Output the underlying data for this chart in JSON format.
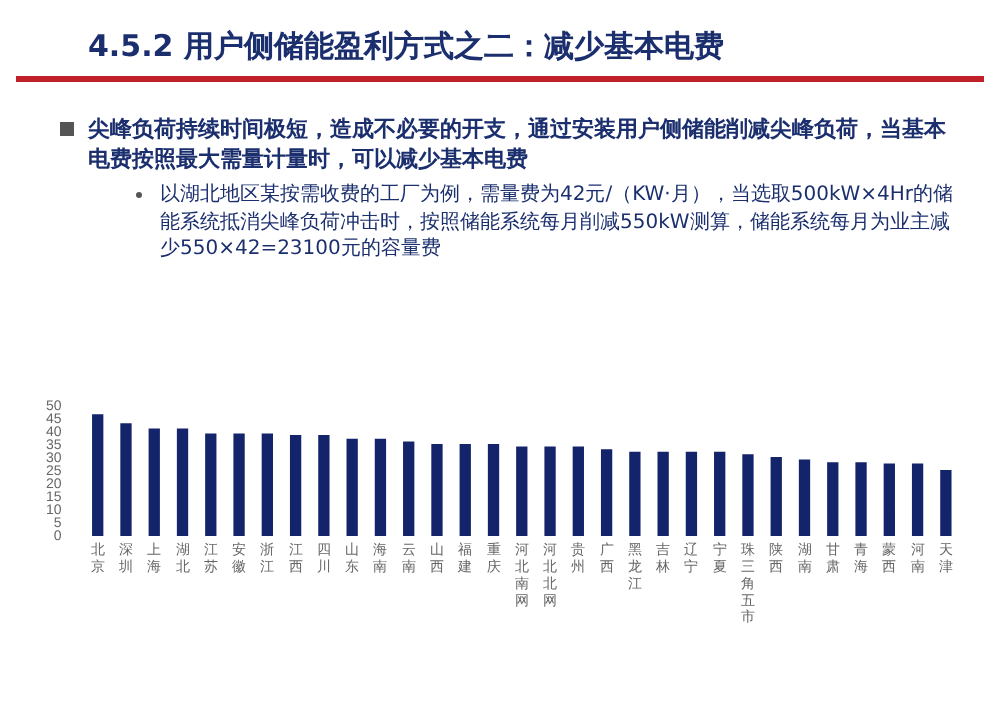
{
  "chart_data": {
    "type": "bar",
    "title": "4.5.2 用户侧储能盈利方式之二：减少基本电费",
    "annotations": [
      "尖峰负荷持续时间极短，造成不必要的开支，通过安装用户侧储能削减尖峰负荷，当基本电费按照最大需量计量时，可以减少基本电费",
      "以湖北地区某按需收费的工厂为例，需量费为42元/（KW·月），当选取500kW×4Hr的储能系统抵消尖峰负荷冲击时，按照储能系统每月削减550kW测算，储能系统每月为业主减少550×42=23100元的容量费"
    ],
    "categories": [
      "北京",
      "深圳",
      "上海",
      "湖北",
      "江苏",
      "安徽",
      "浙江",
      "江西",
      "四川",
      "山东",
      "海南",
      "云南",
      "山西",
      "福建",
      "重庆",
      "河北南网",
      "河北北网",
      "贵州",
      "广西",
      "黑龙江",
      "吉林",
      "辽宁",
      "宁夏",
      "珠三角五市",
      "陕西",
      "湖南",
      "甘肃",
      "青海",
      "蒙西",
      "河南",
      "天津"
    ],
    "values": [
      47,
      43.5,
      41.5,
      41.5,
      39.5,
      39.5,
      39.5,
      39,
      39,
      37.5,
      37.5,
      36.5,
      35.5,
      35.5,
      35.5,
      34.5,
      34.5,
      34.5,
      33.5,
      32.5,
      32.5,
      32.5,
      32.5,
      31.5,
      30.5,
      29.5,
      28.5,
      28.5,
      28,
      28,
      25.5
    ],
    "color": "#14246a",
    "ylim": [
      0,
      50
    ],
    "yticks": [
      0,
      5,
      10,
      15,
      20,
      25,
      30,
      35,
      40,
      45,
      50
    ],
    "grid": false,
    "legend": false
  }
}
